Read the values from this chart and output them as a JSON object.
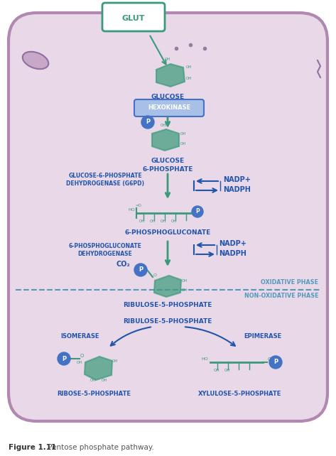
{
  "bg_color": "#f0e8f0",
  "cell_border_color": "#b088b0",
  "cell_fill_color": "#e8d8e8",
  "green_color": "#3a9a7a",
  "blue_color": "#4472c4",
  "dark_blue": "#2255aa",
  "dashed_line_color": "#5599bb",
  "title_bold": "Figure 1.11",
  "title_rest": " Pentose phosphate pathway.",
  "glut_label": "GLUT",
  "glucose_label": "GLUCOSE",
  "hexokinase_label": "HEXOKINASE",
  "g6p_label": "GLUCOSE\n6-PHOSPHATE",
  "g6pd_label": "GLUCOSE-6-PHOSPHATE\nDEHYDROGENASE (G6PD)",
  "nadp1_label": "NADP+",
  "nadph1_label": "NADPH",
  "phosphogluconate_label": "6-PHOSPHOGLUCONATE",
  "g6pd2_label": "6-PHOSPHOGLUCONATE\nDEHYDROGENASE",
  "nadp2_label": "NADP+",
  "nadph2_label": "NADPH",
  "co2_label": "CO₂",
  "ribulose_label": "RIBULOSE-5-PHOSPHATE",
  "oxidative_label": "OXIDATIVE PHASE",
  "nonoxidative_label": "NON-OXIDATIVE PHASE",
  "isomerase_label": "ISOMERASE",
  "epimerase_label": "EPIMERASE",
  "ribose_label": "RIBOSE-5-PHOSPHATE",
  "xylulose_label": "XYLULOSE-5-PHOSPHATE"
}
